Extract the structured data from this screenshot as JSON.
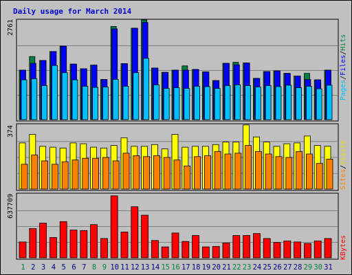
{
  "title": "Daily usage for March 2014",
  "colors": {
    "pages": "#00c0ff",
    "files": "#0000ff",
    "hits": "#008040",
    "sites": "#ff8000",
    "visits": "#ffff00",
    "kbytes": "#ff0000",
    "weekday_label": "#000080",
    "weekend_label": "#008040"
  },
  "chart_data": [
    {
      "type": "bar",
      "ylabel_max": "2761",
      "ylim": [
        0,
        2761
      ],
      "legend": [
        "Pages",
        "Files",
        "Hits"
      ],
      "legend_separator": "/",
      "series": [
        {
          "name": "Hits",
          "values": [
            1380,
            1760,
            1650,
            1900,
            2050,
            1550,
            1420,
            1520,
            1120,
            2600,
            1560,
            2550,
            2780,
            1440,
            1320,
            1380,
            1500,
            1400,
            1330,
            1090,
            1570,
            1600,
            1580,
            1150,
            1340,
            1360,
            1290,
            1220,
            1290,
            1110,
            1380
          ]
        },
        {
          "name": "Files",
          "values": [
            1380,
            1570,
            1650,
            1900,
            2050,
            1550,
            1420,
            1520,
            1120,
            2530,
            1560,
            2550,
            2710,
            1440,
            1320,
            1380,
            1380,
            1400,
            1330,
            1090,
            1570,
            1530,
            1580,
            1150,
            1340,
            1360,
            1290,
            1220,
            1120,
            1110,
            1380
          ]
        },
        {
          "name": "Pages",
          "values": [
            1110,
            1140,
            950,
            1510,
            1310,
            1110,
            930,
            900,
            910,
            1120,
            930,
            1310,
            1710,
            970,
            870,
            890,
            870,
            930,
            920,
            870,
            950,
            970,
            950,
            910,
            950,
            920,
            960,
            890,
            930,
            860,
            960
          ]
        }
      ]
    },
    {
      "type": "bar",
      "ylabel_max": "374",
      "ylim": [
        0,
        374
      ],
      "legend": [
        "Sites",
        "Visits"
      ],
      "legend_separator": "/",
      "series": [
        {
          "name": "Visits",
          "values": [
            270,
            320,
            250,
            245,
            240,
            270,
            265,
            245,
            240,
            255,
            300,
            250,
            250,
            260,
            235,
            320,
            245,
            250,
            250,
            260,
            275,
            275,
            375,
            305,
            275,
            250,
            265,
            270,
            310,
            255,
            250
          ]
        },
        {
          "name": "Sites",
          "values": [
            145,
            200,
            165,
            145,
            160,
            170,
            180,
            180,
            185,
            165,
            210,
            195,
            190,
            195,
            185,
            170,
            135,
            190,
            195,
            220,
            205,
            210,
            255,
            220,
            205,
            190,
            185,
            220,
            205,
            150,
            175
          ]
        }
      ]
    },
    {
      "type": "bar",
      "ylabel_max": "637709",
      "ylim": [
        0,
        637709
      ],
      "legend": [
        "KBytes"
      ],
      "series": [
        {
          "name": "KBytes",
          "values": [
            160000,
            295000,
            350000,
            205000,
            365000,
            280000,
            275000,
            335000,
            195000,
            625000,
            260000,
            515000,
            430000,
            175000,
            110000,
            250000,
            165000,
            225000,
            110000,
            115000,
            150000,
            225000,
            225000,
            245000,
            195000,
            155000,
            170000,
            160000,
            145000,
            170000,
            195000
          ]
        }
      ]
    }
  ],
  "x_labels": [
    "1",
    "2",
    "3",
    "4",
    "5",
    "6",
    "7",
    "8",
    "9",
    "10",
    "11",
    "12",
    "13",
    "14",
    "15",
    "16",
    "17",
    "18",
    "19",
    "20",
    "21",
    "22",
    "23",
    "24",
    "25",
    "26",
    "27",
    "28",
    "29",
    "30",
    "31"
  ],
  "weekend_days": [
    1,
    8,
    9,
    15,
    16,
    22,
    23,
    29,
    30
  ]
}
